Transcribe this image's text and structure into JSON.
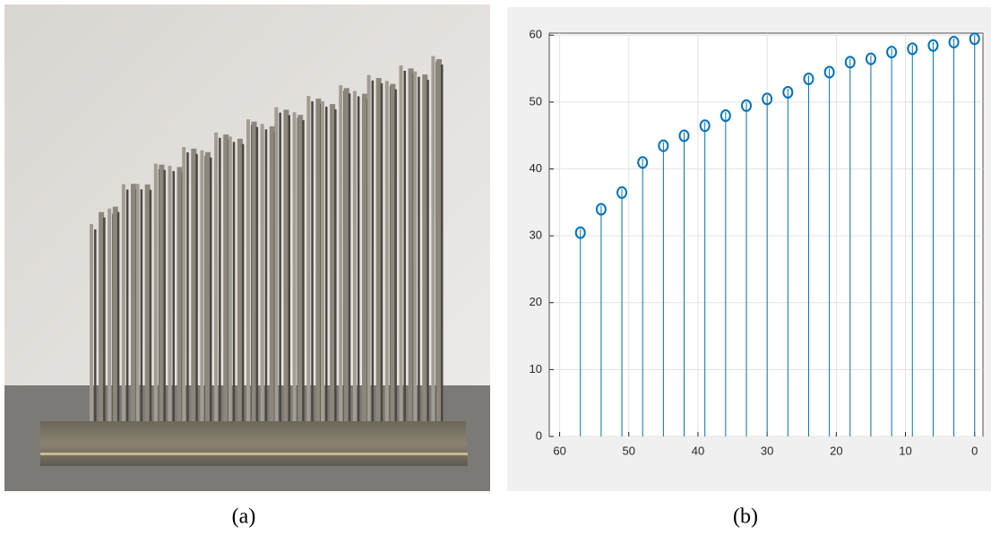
{
  "chart_data": {
    "type": "stem",
    "x": [
      57,
      54,
      51,
      48,
      45,
      42,
      39,
      36,
      33,
      30,
      27,
      24,
      21,
      18,
      15,
      12,
      9,
      6,
      3,
      0
    ],
    "values": [
      31,
      34.5,
      37,
      41.5,
      44,
      45.5,
      47,
      48.5,
      50,
      51,
      52,
      54,
      55,
      56.5,
      57,
      58,
      58.5,
      59,
      59.5,
      60
    ],
    "color": "#0072bd",
    "xlim": [
      61.5,
      -1.2
    ],
    "xticks": [
      60,
      50,
      40,
      30,
      20,
      10,
      0
    ],
    "ylim": [
      0,
      60.3
    ],
    "yticks": [
      0,
      10,
      20,
      30,
      40,
      50,
      60
    ],
    "grid": true
  },
  "captions": [
    "(a)",
    "(b)"
  ]
}
